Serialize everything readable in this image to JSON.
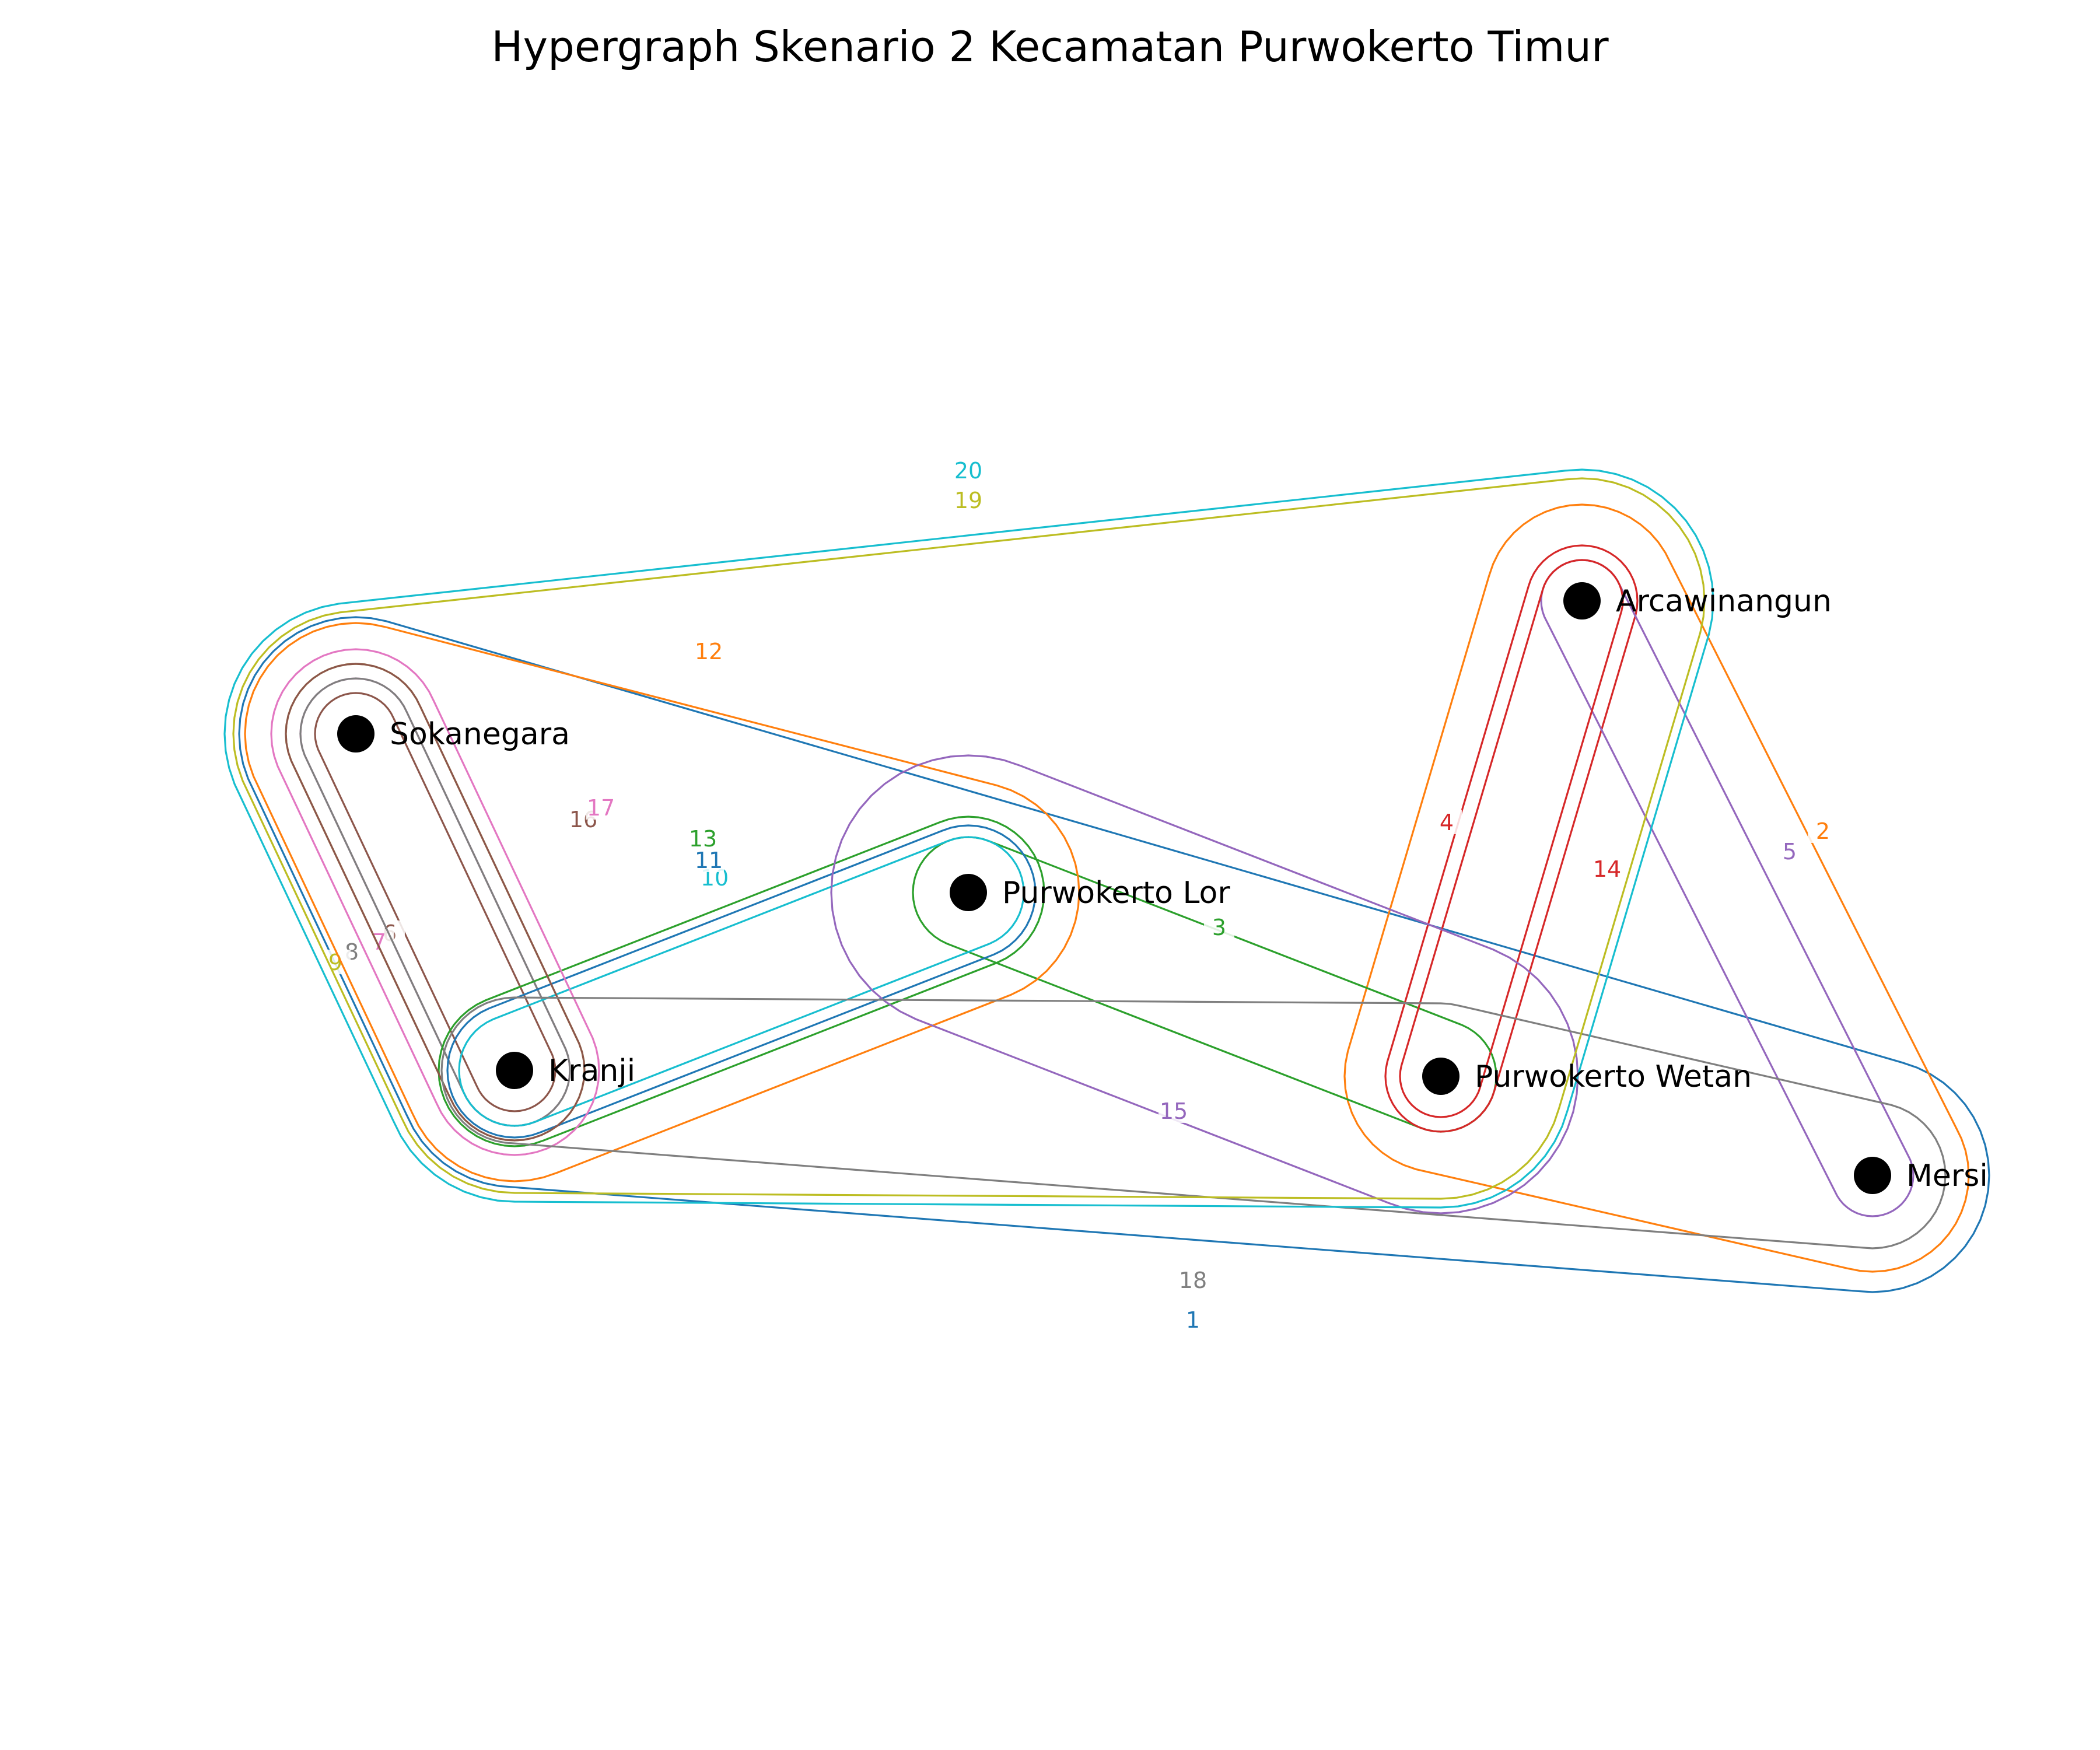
{
  "title": "Hypergraph Skenario 2 Kecamatan Purwokerto Timur",
  "nodes": [
    {
      "id": "sokanegara",
      "label": "Sokanegara"
    },
    {
      "id": "kranji",
      "label": "Kranji"
    },
    {
      "id": "purwokerto_lor",
      "label": "Purwokerto Lor"
    },
    {
      "id": "arcawinangun",
      "label": "Arcawinangun"
    },
    {
      "id": "purwokerto_wetan",
      "label": "Purwokerto Wetan"
    },
    {
      "id": "mersi",
      "label": "Mersi"
    }
  ],
  "hyperedges": [
    {
      "label": "1",
      "color": "#1f77b4",
      "members": [
        "sokanegara",
        "kranji",
        "mersi"
      ]
    },
    {
      "label": "2",
      "color": "#ff7f0e",
      "members": [
        "arcawinangun",
        "purwokerto_wetan",
        "mersi"
      ]
    },
    {
      "label": "3",
      "color": "#2ca02c",
      "members": [
        "purwokerto_lor",
        "purwokerto_wetan"
      ]
    },
    {
      "label": "4",
      "color": "#d62728",
      "members": [
        "arcawinangun",
        "purwokerto_wetan"
      ]
    },
    {
      "label": "5",
      "color": "#9467bd",
      "members": [
        "arcawinangun",
        "mersi"
      ]
    },
    {
      "label": "6",
      "color": "#8c564b",
      "members": [
        "sokanegara",
        "kranji"
      ]
    },
    {
      "label": "7",
      "color": "#e377c2",
      "members": [
        "sokanegara",
        "kranji"
      ]
    },
    {
      "label": "8",
      "color": "#7f7f7f",
      "members": [
        "sokanegara",
        "kranji"
      ]
    },
    {
      "label": "9",
      "color": "#bcbd22",
      "members": [
        "sokanegara",
        "kranji"
      ]
    },
    {
      "label": "10",
      "color": "#17becf",
      "members": [
        "kranji",
        "purwokerto_lor"
      ]
    },
    {
      "label": "11",
      "color": "#1f77b4",
      "members": [
        "kranji",
        "purwokerto_lor"
      ]
    },
    {
      "label": "12",
      "color": "#ff7f0e",
      "members": [
        "sokanegara",
        "kranji",
        "purwokerto_lor"
      ]
    },
    {
      "label": "13",
      "color": "#2ca02c",
      "members": [
        "kranji",
        "purwokerto_lor"
      ]
    },
    {
      "label": "14",
      "color": "#d62728",
      "members": [
        "arcawinangun",
        "purwokerto_wetan"
      ]
    },
    {
      "label": "15",
      "color": "#9467bd",
      "members": [
        "purwokerto_lor",
        "purwokerto_wetan"
      ]
    },
    {
      "label": "16",
      "color": "#8c564b",
      "members": [
        "sokanegara",
        "kranji"
      ]
    },
    {
      "label": "17",
      "color": "#e377c2",
      "members": [
        "sokanegara",
        "kranji"
      ]
    },
    {
      "label": "18",
      "color": "#7f7f7f",
      "members": [
        "kranji",
        "purwokerto_wetan",
        "mersi"
      ]
    },
    {
      "label": "19",
      "color": "#bcbd22",
      "members": [
        "sokanegara",
        "kranji",
        "arcawinangun",
        "purwokerto_wetan"
      ]
    },
    {
      "label": "20",
      "color": "#17becf",
      "members": [
        "sokanegara",
        "kranji",
        "purwokerto_wetan",
        "arcawinangun"
      ]
    }
  ]
}
